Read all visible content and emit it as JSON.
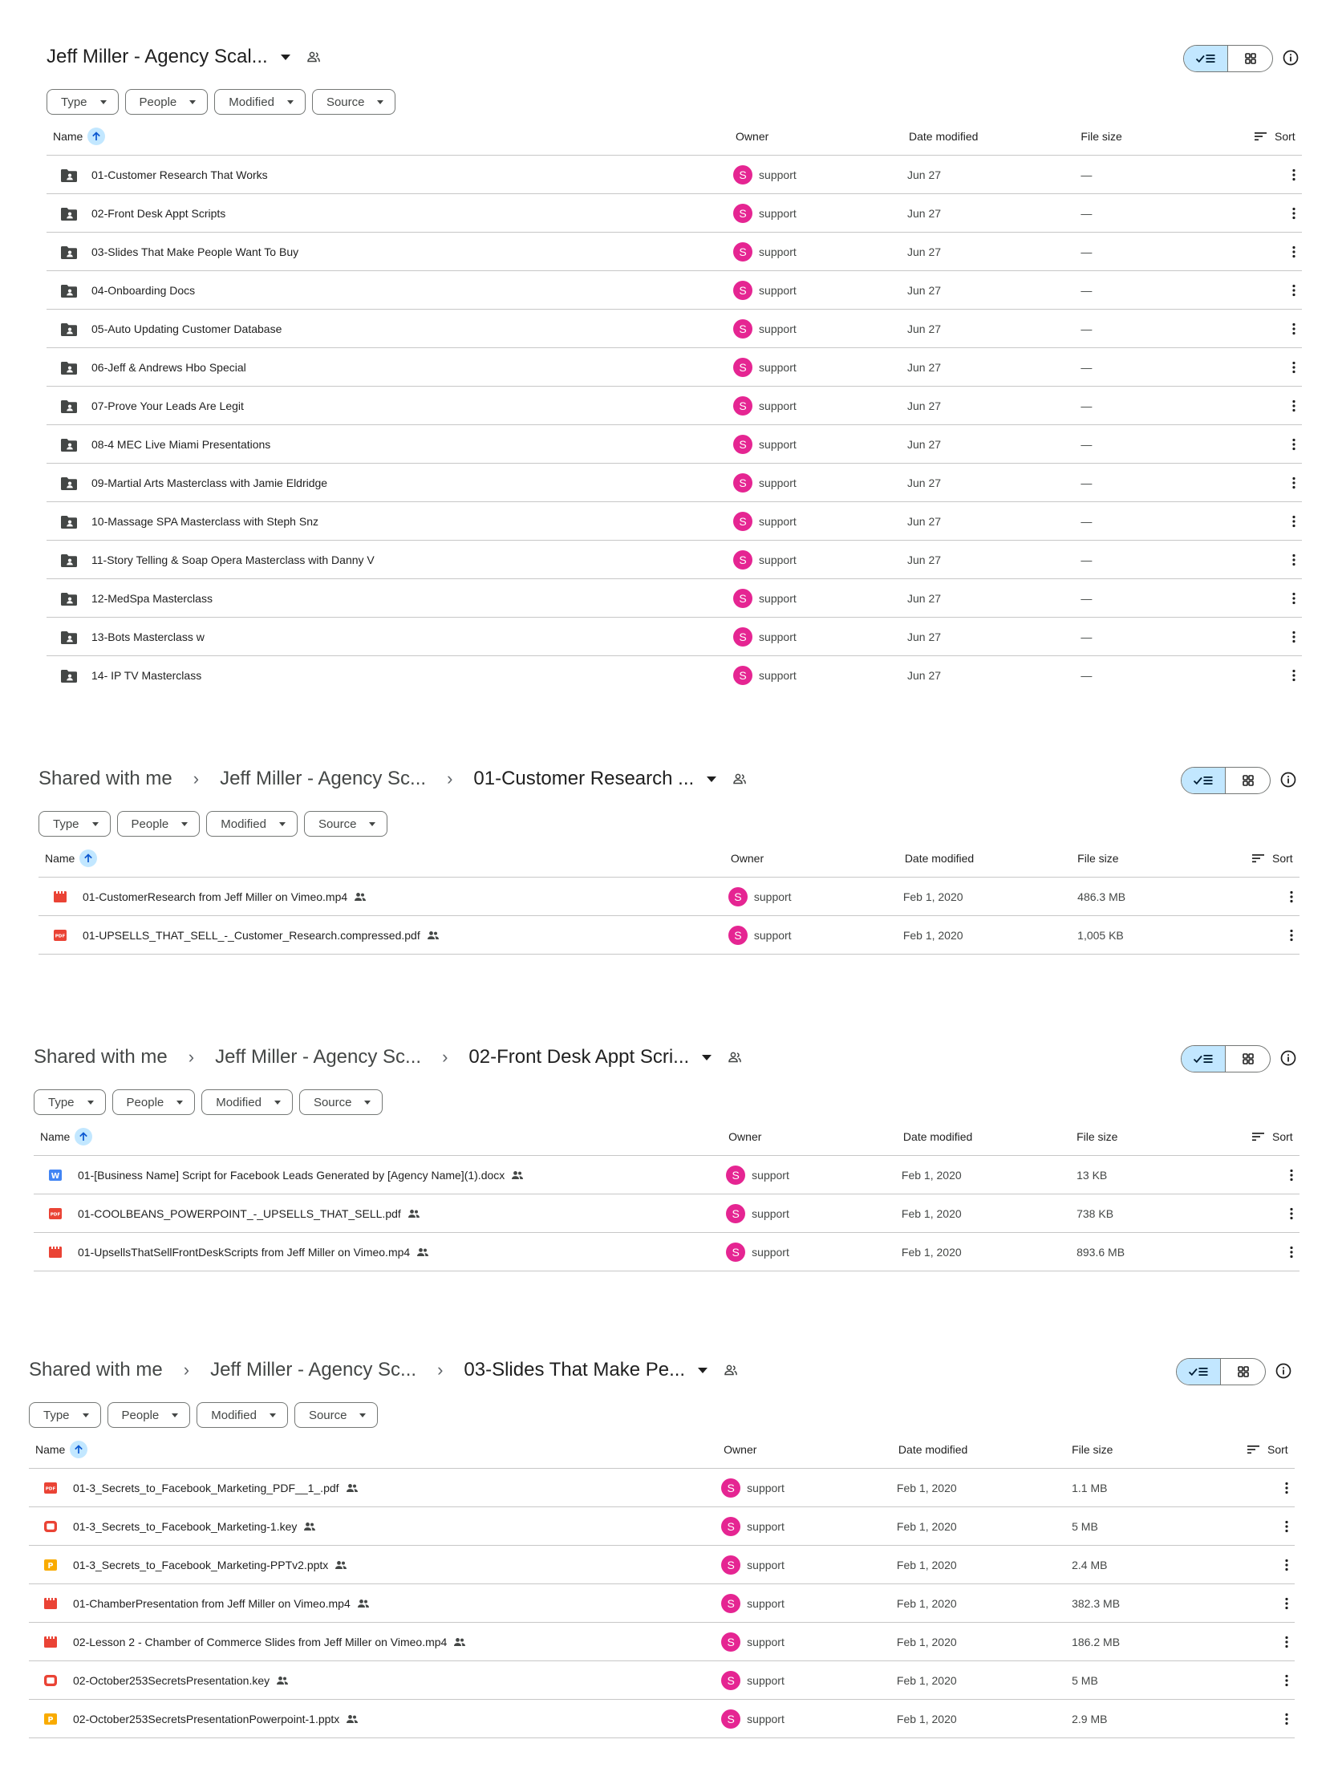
{
  "columns": {
    "name": "Name",
    "owner": "Owner",
    "modified": "Date modified",
    "size": "File size",
    "sort": "Sort"
  },
  "filters": [
    "Type",
    "People",
    "Modified",
    "Source"
  ],
  "panels": [
    {
      "breadcrumbs": [],
      "current": "Jeff Miller - Agency Scal...",
      "rows": [
        {
          "icon": "shared-folder-icon",
          "name": "01-Customer Research That Works",
          "owner": "support",
          "avatar": "S",
          "date": "Jun 27",
          "size": "—"
        },
        {
          "icon": "shared-folder-icon",
          "name": "02-Front Desk Appt Scripts",
          "owner": "support",
          "avatar": "S",
          "date": "Jun 27",
          "size": "—"
        },
        {
          "icon": "shared-folder-icon",
          "name": "03-Slides That Make People Want To Buy",
          "owner": "support",
          "avatar": "S",
          "date": "Jun 27",
          "size": "—"
        },
        {
          "icon": "shared-folder-icon",
          "name": "04-Onboarding Docs",
          "owner": "support",
          "avatar": "S",
          "date": "Jun 27",
          "size": "—"
        },
        {
          "icon": "shared-folder-icon",
          "name": "05-Auto Updating Customer Database",
          "owner": "support",
          "avatar": "S",
          "date": "Jun 27",
          "size": "—"
        },
        {
          "icon": "shared-folder-icon",
          "name": "06-Jeff & Andrews Hbo Special",
          "owner": "support",
          "avatar": "S",
          "date": "Jun 27",
          "size": "—"
        },
        {
          "icon": "shared-folder-icon",
          "name": "07-Prove Your Leads Are Legit",
          "owner": "support",
          "avatar": "S",
          "date": "Jun 27",
          "size": "—"
        },
        {
          "icon": "shared-folder-icon",
          "name": "08-4 MEC Live Miami Presentations",
          "owner": "support",
          "avatar": "S",
          "date": "Jun 27",
          "size": "—"
        },
        {
          "icon": "shared-folder-icon",
          "name": "09-Martial Arts Masterclass with Jamie Eldridge",
          "owner": "support",
          "avatar": "S",
          "date": "Jun 27",
          "size": "—"
        },
        {
          "icon": "shared-folder-icon",
          "name": "10-Massage SPA Masterclass with Steph Snz",
          "owner": "support",
          "avatar": "S",
          "date": "Jun 27",
          "size": "—"
        },
        {
          "icon": "shared-folder-icon",
          "name": "11-Story Telling & Soap Opera Masterclass with Danny V",
          "owner": "support",
          "avatar": "S",
          "date": "Jun 27",
          "size": "—"
        },
        {
          "icon": "shared-folder-icon",
          "name": "12-MedSpa Masterclass",
          "owner": "support",
          "avatar": "S",
          "date": "Jun 27",
          "size": "—"
        },
        {
          "icon": "shared-folder-icon",
          "name": "13-Bots Masterclass w",
          "owner": "support",
          "avatar": "S",
          "date": "Jun 27",
          "size": "—"
        },
        {
          "icon": "shared-folder-icon",
          "name": "14- IP TV Masterclass",
          "owner": "support",
          "avatar": "S",
          "date": "Jun 27",
          "size": "—"
        }
      ]
    },
    {
      "breadcrumbs": [
        "Shared with me",
        "Jeff Miller - Agency Sc..."
      ],
      "current": "01-Customer Research ...",
      "rows": [
        {
          "icon": "video-file-icon",
          "name": "01-CustomerResearch from Jeff Miller on Vimeo.mp4",
          "owner": "support",
          "avatar": "S",
          "date": "Feb 1, 2020",
          "size": "486.3 MB",
          "shared": true
        },
        {
          "icon": "pdf-file-icon",
          "name": "01-UPSELLS_THAT_SELL_-_Customer_Research.compressed.pdf",
          "owner": "support",
          "avatar": "S",
          "date": "Feb 1, 2020",
          "size": "1,005 KB",
          "shared": true
        }
      ]
    },
    {
      "breadcrumbs": [
        "Shared with me",
        "Jeff Miller - Agency Sc..."
      ],
      "current": "02-Front Desk Appt Scri...",
      "rows": [
        {
          "icon": "word-doc-icon",
          "name": "01-[Business Name] Script for Facebook Leads Generated by [Agency Name](1).docx",
          "owner": "support",
          "avatar": "S",
          "date": "Feb 1, 2020",
          "size": "13 KB",
          "shared": true
        },
        {
          "icon": "pdf-file-icon",
          "name": "01-COOLBEANS_POWERPOINT_-_UPSELLS_THAT_SELL.pdf",
          "owner": "support",
          "avatar": "S",
          "date": "Feb 1, 2020",
          "size": "738 KB",
          "shared": true
        },
        {
          "icon": "video-file-icon",
          "name": "01-UpsellsThatSellFrontDeskScripts from Jeff Miller on Vimeo.mp4",
          "owner": "support",
          "avatar": "S",
          "date": "Feb 1, 2020",
          "size": "893.6 MB",
          "shared": true
        }
      ]
    },
    {
      "breadcrumbs": [
        "Shared with me",
        "Jeff Miller - Agency Sc..."
      ],
      "current": "03-Slides That Make Pe...",
      "rows": [
        {
          "icon": "pdf-file-icon",
          "name": "01-3_Secrets_to_Facebook_Marketing_PDF__1_.pdf",
          "owner": "support",
          "avatar": "S",
          "date": "Feb 1, 2020",
          "size": "1.1 MB",
          "shared": true
        },
        {
          "icon": "keynote-file-icon",
          "name": "01-3_Secrets_to_Facebook_Marketing-1.key",
          "owner": "support",
          "avatar": "S",
          "date": "Feb 1, 2020",
          "size": "5 MB",
          "shared": true
        },
        {
          "icon": "slides-file-icon",
          "name": "01-3_Secrets_to_Facebook_Marketing-PPTv2.pptx",
          "owner": "support",
          "avatar": "S",
          "date": "Feb 1, 2020",
          "size": "2.4 MB",
          "shared": true
        },
        {
          "icon": "video-file-icon",
          "name": "01-ChamberPresentation from Jeff Miller on Vimeo.mp4",
          "owner": "support",
          "avatar": "S",
          "date": "Feb 1, 2020",
          "size": "382.3 MB",
          "shared": true
        },
        {
          "icon": "video-file-icon",
          "name": "02-Lesson 2 - Chamber of Commerce Slides from Jeff Miller on Vimeo.mp4",
          "owner": "support",
          "avatar": "S",
          "date": "Feb 1, 2020",
          "size": "186.2 MB",
          "shared": true
        },
        {
          "icon": "keynote-file-icon",
          "name": "02-October253SecretsPresentation.key",
          "owner": "support",
          "avatar": "S",
          "date": "Feb 1, 2020",
          "size": "5 MB",
          "shared": true
        },
        {
          "icon": "slides-file-icon",
          "name": "02-October253SecretsPresentationPowerpoint-1.pptx",
          "owner": "support",
          "avatar": "S",
          "date": "Feb 1, 2020",
          "size": "2.9 MB",
          "shared": true
        }
      ]
    }
  ]
}
